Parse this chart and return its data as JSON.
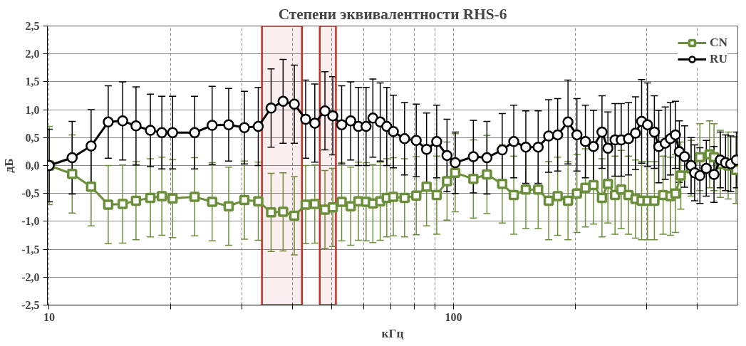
{
  "chart_data": {
    "type": "line",
    "title": "Степени эквивалентности RHS-6",
    "xlabel": "кГц",
    "ylabel": "дБ",
    "log": "x",
    "xlim": [
      9.9,
      505
    ],
    "ylim": [
      -2.5,
      2.5
    ],
    "xticks": [
      10,
      {
        "value": 20,
        "label": null
      },
      {
        "value": 30,
        "label": null
      },
      {
        "value": 40,
        "label": null
      },
      {
        "value": 50,
        "label": null
      },
      {
        "value": 60,
        "label": null
      },
      {
        "value": 70,
        "label": null
      },
      {
        "value": 80,
        "label": null
      },
      {
        "value": 90,
        "label": null
      },
      100,
      {
        "value": 200,
        "label": null
      },
      {
        "value": 300,
        "label": null
      },
      {
        "value": 400,
        "label": null
      }
    ],
    "yticks": [
      {
        "value": -2.5,
        "label": "-2,5"
      },
      {
        "value": -2,
        "label": "-2,0"
      },
      {
        "value": -1.5,
        "label": "-1,5"
      },
      {
        "value": -1,
        "label": "-1,0"
      },
      {
        "value": -0.5,
        "label": "-0,5"
      },
      {
        "value": 0,
        "label": "0,0"
      },
      {
        "value": 0.5,
        "label": "0,5"
      },
      {
        "value": 1,
        "label": "1,0"
      },
      {
        "value": 1.5,
        "label": "1,5"
      },
      {
        "value": 2,
        "label": "2,0"
      },
      {
        "value": 2.5,
        "label": "2,5"
      }
    ],
    "grid": true,
    "legend": "top right",
    "line_style": "solid",
    "bands": [
      {
        "axis": "x",
        "from": 33.6,
        "to": 42.2,
        "color": "#c0302a"
      },
      {
        "axis": "x",
        "from": 46.7,
        "to": 51.2,
        "color": "#c0302a"
      }
    ],
    "series": [
      {
        "name": "CN",
        "color": "#6b8e3a",
        "marker": "square",
        "x": [
          10,
          11.4,
          12.7,
          14,
          15.2,
          16.4,
          17.8,
          19,
          20.2,
          22.9,
          25.3,
          27.8,
          30.4,
          32.9,
          35.4,
          37.9,
          40.4,
          43.1,
          45.4,
          48.1,
          50.3,
          52.9,
          55.7,
          58.2,
          60.8,
          63.2,
          65.9,
          68.4,
          71,
          75.7,
          80.9,
          85.8,
          90.9,
          96.4,
          101,
          112,
          121,
          132,
          141,
          151,
          162,
          172,
          181,
          192,
          202,
          212,
          222,
          233,
          241,
          251,
          260,
          271,
          282,
          292,
          302,
          314,
          330,
          344,
          354,
          365,
          387,
          407,
          430,
          441,
          457,
          478,
          500
        ],
        "values": [
          0,
          -0.15,
          -0.38,
          -0.7,
          -0.69,
          -0.63,
          -0.58,
          -0.55,
          -0.59,
          -0.56,
          -0.65,
          -0.73,
          -0.62,
          -0.64,
          -0.84,
          -0.83,
          -0.9,
          -0.7,
          -0.69,
          -0.79,
          -0.75,
          -0.65,
          -0.73,
          -0.64,
          -0.65,
          -0.68,
          -0.64,
          -0.58,
          -0.56,
          -0.58,
          -0.54,
          -0.38,
          -0.53,
          -0.28,
          -0.13,
          -0.24,
          -0.16,
          -0.33,
          -0.53,
          -0.43,
          -0.43,
          -0.63,
          -0.55,
          -0.63,
          -0.5,
          -0.4,
          -0.35,
          -0.58,
          -0.33,
          -0.53,
          -0.43,
          -0.53,
          -0.6,
          -0.63,
          -0.63,
          -0.63,
          -0.53,
          -0.55,
          -0.5,
          -0.18,
          -0.05,
          0.15,
          0.2,
          0.15,
          0.03,
          0,
          -0.08
        ],
        "errors": [
          0.7,
          0.7,
          0.7,
          0.7,
          0.7,
          0.7,
          0.7,
          0.7,
          0.7,
          0.7,
          0.7,
          0.7,
          0.7,
          0.7,
          0.7,
          0.7,
          0.7,
          0.7,
          0.7,
          0.7,
          0.7,
          0.7,
          0.7,
          0.7,
          0.7,
          0.7,
          0.7,
          0.7,
          0.7,
          0.7,
          0.7,
          0.7,
          0.7,
          0.7,
          0.7,
          0.7,
          0.7,
          0.7,
          0.7,
          0.7,
          0.7,
          0.7,
          0.7,
          0.7,
          0.7,
          0.7,
          0.7,
          0.7,
          0.7,
          0.7,
          0.7,
          0.7,
          0.7,
          0.7,
          0.7,
          0.7,
          0.7,
          0.7,
          0.7,
          0.6,
          0.5,
          0.6,
          0.6,
          0.6,
          0.6,
          0.6,
          0.6
        ]
      },
      {
        "name": "RU",
        "color": "#000000",
        "marker": "circle",
        "x": [
          10,
          11.4,
          12.7,
          14,
          15.2,
          16.4,
          17.8,
          19,
          20.2,
          22.9,
          25.3,
          27.8,
          30.4,
          32.9,
          35.4,
          37.9,
          40.4,
          43.1,
          45.4,
          48.1,
          50.3,
          52.9,
          55.7,
          58.2,
          60.8,
          63.2,
          65.9,
          68.4,
          71,
          75.7,
          80.9,
          85.8,
          90.9,
          96.4,
          101,
          112,
          121,
          132,
          141,
          151,
          162,
          172,
          181,
          192,
          202,
          212,
          222,
          233,
          241,
          251,
          260,
          271,
          282,
          292,
          302,
          314,
          322,
          334,
          344,
          354,
          362,
          373,
          387,
          395,
          407,
          422,
          441,
          457,
          471,
          485,
          501
        ],
        "values": [
          0,
          0.14,
          0.35,
          0.78,
          0.8,
          0.71,
          0.63,
          0.59,
          0.59,
          0.59,
          0.72,
          0.73,
          0.68,
          0.7,
          1.03,
          1.15,
          1.1,
          0.83,
          0.76,
          0.98,
          0.89,
          0.73,
          0.8,
          0.7,
          0.7,
          0.85,
          0.78,
          0.7,
          0.61,
          0.48,
          0.45,
          0.29,
          0.43,
          0.18,
          0.05,
          0.16,
          0.14,
          0.28,
          0.43,
          0.33,
          0.33,
          0.53,
          0.55,
          0.78,
          0.55,
          0.43,
          0.34,
          0.6,
          0.31,
          0.46,
          0.46,
          0.48,
          0.58,
          0.79,
          0.73,
          0.6,
          0.34,
          0.4,
          0.48,
          0.55,
          0.25,
          0.16,
          0,
          -0.13,
          -0.18,
          -0.05,
          -0.16,
          0.1,
          0.05,
          0.03,
          0.1
        ],
        "errors": [
          0.65,
          0.65,
          0.65,
          0.65,
          0.7,
          0.7,
          0.65,
          0.65,
          0.65,
          0.65,
          0.7,
          0.65,
          0.65,
          0.7,
          0.7,
          0.75,
          0.7,
          0.7,
          0.7,
          0.7,
          0.7,
          0.7,
          0.7,
          0.7,
          0.7,
          0.7,
          0.7,
          0.7,
          0.65,
          0.65,
          0.65,
          0.65,
          0.65,
          0.65,
          0.55,
          0.65,
          0.65,
          0.65,
          0.65,
          0.65,
          0.65,
          0.65,
          0.65,
          0.75,
          0.65,
          0.65,
          0.65,
          0.65,
          0.65,
          0.65,
          0.65,
          0.65,
          0.65,
          0.75,
          0.75,
          0.65,
          0.65,
          0.65,
          0.65,
          0.6,
          0.55,
          0.55,
          0.5,
          0.5,
          0.5,
          0.5,
          0.5,
          0.5,
          0.5,
          0.5,
          0.5
        ]
      }
    ]
  }
}
